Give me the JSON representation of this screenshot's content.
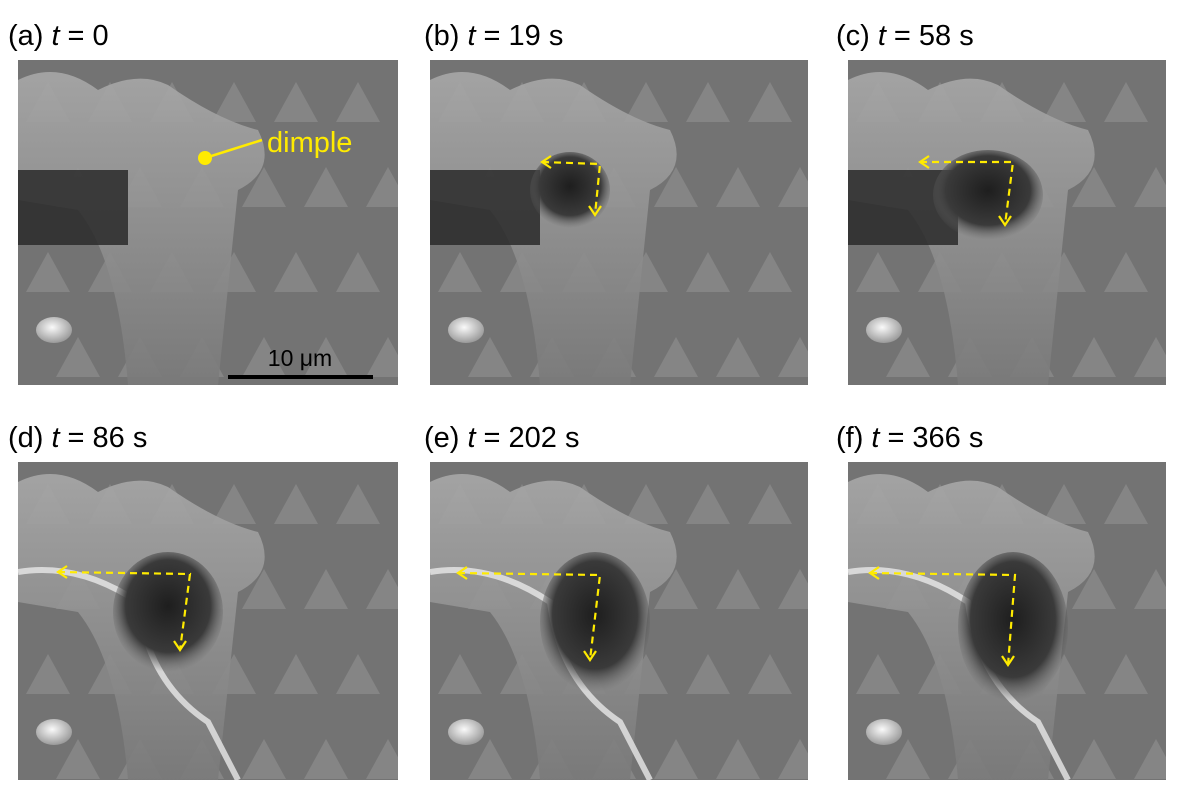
{
  "panels": [
    {
      "letter": "(a)",
      "var": "t",
      "value": "= 0"
    },
    {
      "letter": "(b)",
      "var": "t",
      "value": "= 19 s"
    },
    {
      "letter": "(c)",
      "var": "t",
      "value": "= 58 s"
    },
    {
      "letter": "(d)",
      "var": "t",
      "value": "= 86 s"
    },
    {
      "letter": "(e)",
      "var": "t",
      "value": "= 202 s"
    },
    {
      "letter": "(f)",
      "var": "t",
      "value": "= 366 s"
    }
  ],
  "annotation": "dimple",
  "scale_bar": "10 μm"
}
